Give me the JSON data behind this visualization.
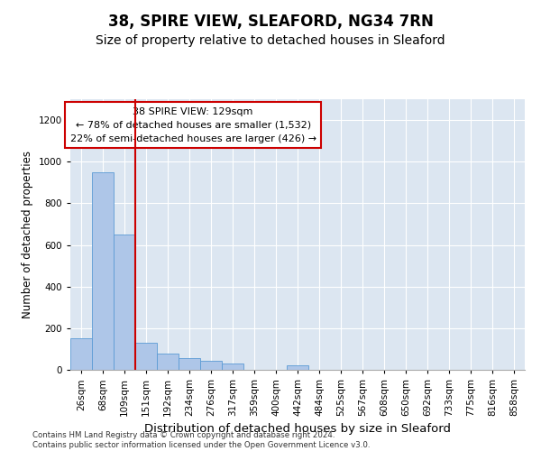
{
  "title": "38, SPIRE VIEW, SLEAFORD, NG34 7RN",
  "subtitle": "Size of property relative to detached houses in Sleaford",
  "xlabel": "Distribution of detached houses by size in Sleaford",
  "ylabel": "Number of detached properties",
  "bar_labels": [
    "26sqm",
    "68sqm",
    "109sqm",
    "151sqm",
    "192sqm",
    "234sqm",
    "276sqm",
    "317sqm",
    "359sqm",
    "400sqm",
    "442sqm",
    "484sqm",
    "525sqm",
    "567sqm",
    "608sqm",
    "650sqm",
    "692sqm",
    "733sqm",
    "775sqm",
    "816sqm",
    "858sqm"
  ],
  "bar_values": [
    150,
    950,
    650,
    130,
    80,
    55,
    45,
    30,
    0,
    0,
    20,
    0,
    0,
    0,
    0,
    0,
    0,
    0,
    0,
    0,
    0
  ],
  "bar_color": "#aec6e8",
  "bar_edge_color": "#5b9bd5",
  "vline_x_idx": 2.5,
  "vline_color": "#cc0000",
  "annotation_text": "38 SPIRE VIEW: 129sqm\n← 78% of detached houses are smaller (1,532)\n22% of semi-detached houses are larger (426) →",
  "annotation_box_color": "#ffffff",
  "annotation_box_edge": "#cc0000",
  "ylim": [
    0,
    1300
  ],
  "yticks": [
    0,
    200,
    400,
    600,
    800,
    1000,
    1200
  ],
  "bg_color": "#dce6f1",
  "footer": "Contains HM Land Registry data © Crown copyright and database right 2024.\nContains public sector information licensed under the Open Government Licence v3.0.",
  "title_fontsize": 12,
  "subtitle_fontsize": 10,
  "xlabel_fontsize": 9.5,
  "ylabel_fontsize": 8.5,
  "tick_fontsize": 7.5,
  "annotation_fontsize": 8
}
